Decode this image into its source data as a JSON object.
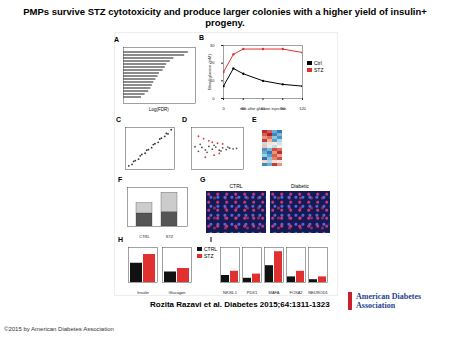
{
  "header": {
    "title": "PMPs survive STZ cytotoxicity and produce larger colonies with a higher yield of insulin+ progeny."
  },
  "chart_data": [
    {
      "panel": "A",
      "type": "bar",
      "orientation": "horizontal",
      "x_label": "Log(FDR)",
      "categories": [
        null,
        null,
        null,
        null,
        null,
        null,
        null,
        null,
        null,
        null,
        null,
        null,
        null,
        null,
        null,
        null
      ],
      "values": [
        9,
        8.5,
        7,
        6.5,
        6,
        5.8,
        5.5,
        5,
        4.8,
        4.5,
        4.2,
        4,
        3.8,
        3.5,
        3,
        2.5
      ],
      "color": "#8c8c8c",
      "xlim": [
        0,
        10
      ],
      "tick_labels": false
    },
    {
      "panel": "B",
      "type": "line",
      "x_label": "min after glucose injection",
      "y_label": "Blood glucose (mM)",
      "x": [
        0,
        15,
        30,
        60,
        90,
        120
      ],
      "series": [
        {
          "name": "Ctrl",
          "color": "#000000",
          "values": [
            7,
            17,
            14,
            10,
            8,
            7
          ]
        },
        {
          "name": "STZ",
          "color": "#e03030",
          "values": [
            15,
            25,
            28,
            28,
            28,
            26
          ]
        }
      ],
      "xlim": [
        0,
        120
      ],
      "xticks": [
        0,
        30,
        60,
        90,
        120
      ],
      "ylim": [
        0,
        30
      ],
      "yticks": [
        0,
        10,
        20,
        30
      ],
      "legend": "right",
      "marker": "circle"
    },
    {
      "panel": "C",
      "type": "scatter",
      "x": [
        1,
        2,
        2.5,
        3,
        4,
        4.5,
        5,
        6,
        6.5,
        7,
        8,
        8.5,
        9,
        10,
        10.5,
        11,
        12,
        12.5,
        13,
        14
      ],
      "values": [
        1.3,
        1.8,
        2.9,
        3.2,
        3.7,
        4.9,
        5.4,
        5.8,
        6.9,
        7.1,
        7.8,
        8.9,
        9.2,
        9.7,
        10.9,
        11.2,
        11.8,
        12.9,
        12.7,
        14.2
      ],
      "color": "#333333",
      "xlim": [
        0,
        15
      ],
      "ylim": [
        0,
        15
      ],
      "tick_labels": false
    },
    {
      "panel": "D",
      "type": "scatter",
      "series": [
        {
          "color": "#555555",
          "x": [
            1,
            2,
            3,
            4,
            5,
            6,
            7,
            8,
            9,
            10,
            11,
            12,
            13,
            2.5,
            4.5,
            6.5,
            8.5,
            10.5
          ],
          "values": [
            0.5,
            -0.8,
            0.3,
            -0.4,
            0.6,
            -0.2,
            0.4,
            -0.5,
            0.2,
            -0.3,
            0.1,
            -0.1,
            0.05,
            1.2,
            -1.1,
            0.9,
            -0.7,
            0.4
          ]
        },
        {
          "color": "#e03030",
          "x": [
            2,
            3.5,
            5,
            6,
            7.5,
            9,
            4,
            6.5,
            8
          ],
          "values": [
            3.5,
            2.8,
            2.2,
            1.8,
            1.5,
            1.3,
            -2.5,
            -1.9,
            -1.4
          ]
        }
      ],
      "xlim": [
        0,
        15
      ],
      "ylim": [
        -6,
        6
      ],
      "tick_labels": false
    },
    {
      "panel": "E",
      "type": "heatmap",
      "cells": [
        [
          1.5,
          1.2,
          -1.0,
          -1.4
        ],
        [
          1.2,
          1.6,
          -1.3,
          -0.9
        ],
        [
          0.9,
          1.1,
          -0.8,
          -1.2
        ],
        [
          1.4,
          0.7,
          -1.1,
          -0.6
        ],
        [
          -0.5,
          0.3,
          0.2,
          -0.4
        ],
        [
          0.6,
          -0.2,
          -0.5,
          0.1
        ],
        [
          -1.2,
          -0.9,
          1.3,
          1.1
        ],
        [
          -1.0,
          -1.4,
          0.9,
          1.5
        ],
        [
          -0.7,
          -1.1,
          1.2,
          0.8
        ],
        [
          -1.5,
          -0.8,
          1.0,
          1.3
        ],
        [
          0.4,
          -0.6,
          0.3,
          -0.2
        ],
        [
          -1.3,
          -1.0,
          1.4,
          0.9
        ]
      ],
      "color_range": [
        -2,
        2
      ],
      "tick_labels": false
    },
    {
      "panel": "F",
      "type": "bar",
      "stacked": true,
      "categories": [
        "CTRL",
        "STZ"
      ],
      "series": [
        {
          "color": "#555555",
          "values": [
            10,
            11
          ]
        },
        {
          "color": "#cccccc",
          "values": [
            8,
            15
          ]
        }
      ],
      "ylim": [
        0,
        30
      ],
      "tick_labels": "x"
    },
    {
      "panel": "G",
      "type": "image",
      "labels": [
        "CTRL",
        "Diabetic"
      ]
    },
    {
      "panel": "H",
      "type": "bar",
      "categories": [
        "Insulin",
        "Glucagon"
      ],
      "series": [
        {
          "name": "CTRL",
          "color": "#111111",
          "values": [
            22,
            12
          ]
        },
        {
          "name": "STZ",
          "color": "#e03030",
          "values": [
            32,
            16
          ]
        }
      ],
      "ylim": [
        0,
        40
      ],
      "tick_labels": "x",
      "legend": "right"
    },
    {
      "panel": "I",
      "type": "bar",
      "categories": [
        "NKX6.1",
        "PDX1",
        "MAFA",
        "FOXA2",
        "NEUROD1"
      ],
      "series": [
        {
          "color": "#111111",
          "values": [
            5,
            3,
            12,
            4,
            2
          ]
        },
        {
          "color": "#e03030",
          "values": [
            8,
            6,
            22,
            8,
            4
          ]
        }
      ],
      "ylim": [
        0,
        25
      ],
      "tick_labels": "x"
    }
  ],
  "footer": {
    "citation": "Rozita Razavi et al. Diabetes 2015;64:1311-1323",
    "publisher": "American Diabetes Association",
    "copyright": "©2015 by American Diabetes Association"
  }
}
